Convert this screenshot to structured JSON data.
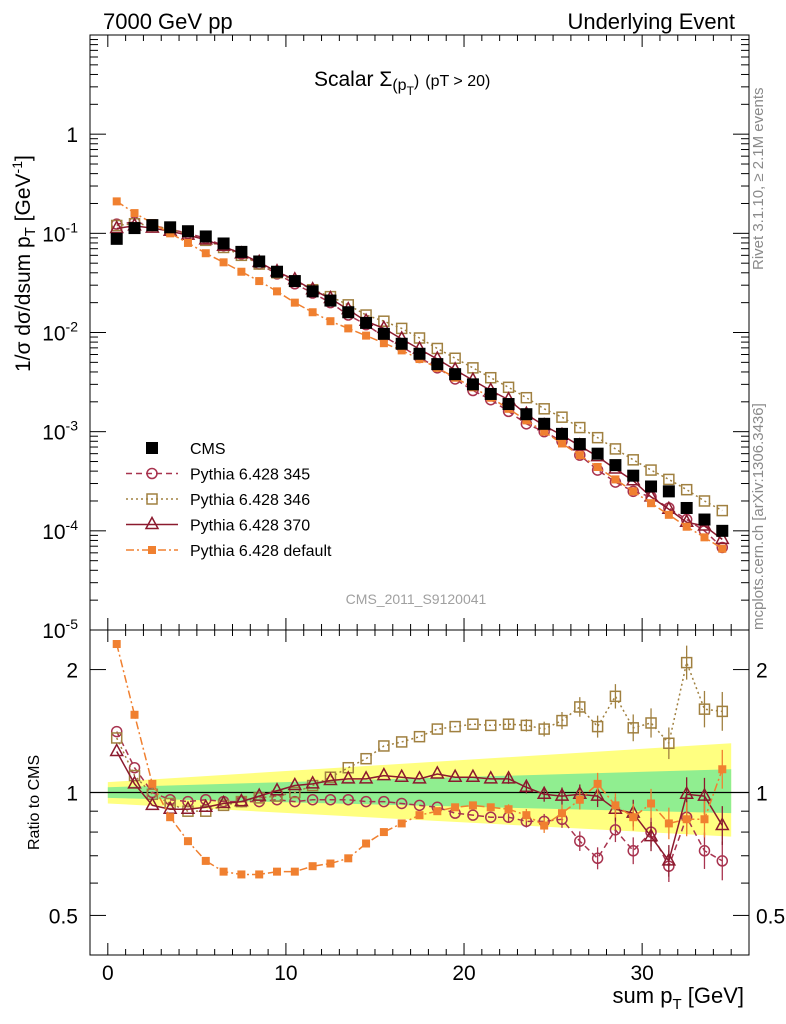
{
  "header": {
    "left": "7000 GeV pp",
    "right": "Underlying Event",
    "title_main": "Scalar Σ",
    "title_sub": "(p",
    "title_subT": "T",
    "title_close": ")",
    "title_cut": "(pT > 20)",
    "analysis_id": "CMS_2011_S9120041",
    "side_rivet": "Rivet 3.1.10, ≥ 2.1M events",
    "side_site": "mcplots.cern.ch [arXiv:1306.3436]"
  },
  "axes": {
    "top_ylabel": "1/σ dσ/dsum p",
    "top_ylabel_sub": "T",
    "top_ylabel_unit": " [GeV",
    "top_ylabel_unit_sup": "-1",
    "top_ylabel_close": "]",
    "bottom_ylabel": "Ratio to CMS",
    "xlabel": "sum p",
    "xlabel_sub": "T",
    "xlabel_unit": " [GeV]"
  },
  "chart_data": [
    {
      "type": "scatter",
      "panel": "main",
      "yscale": "log",
      "xlim": [
        -1,
        36
      ],
      "ylim": [
        1e-05,
        10
      ],
      "xticks": [
        0,
        10,
        20,
        30
      ],
      "yticks": [
        {
          "value": 1,
          "label": "1"
        },
        {
          "value": 0.1,
          "label": "10",
          "exp": "-1"
        },
        {
          "value": 0.01,
          "label": "10",
          "exp": "-2"
        },
        {
          "value": 0.001,
          "label": "10",
          "exp": "-3"
        },
        {
          "value": 0.0001,
          "label": "10",
          "exp": "-4"
        },
        {
          "value": 1e-05,
          "label": "10",
          "exp": "-5"
        }
      ],
      "x": [
        0.5,
        1.5,
        2.5,
        3.5,
        4.5,
        5.5,
        6.5,
        7.5,
        8.5,
        9.5,
        10.5,
        11.5,
        12.5,
        13.5,
        14.5,
        15.5,
        16.5,
        17.5,
        18.5,
        19.5,
        20.5,
        21.5,
        22.5,
        23.5,
        24.5,
        25.5,
        26.5,
        27.5,
        28.5,
        29.5,
        30.5,
        31.5,
        32.5,
        33.5,
        34.5
      ],
      "series": [
        {
          "name": "CMS",
          "color": "#000000",
          "marker": "square-filled",
          "line": "none",
          "values": [
            0.088,
            0.113,
            0.121,
            0.115,
            0.105,
            0.093,
            0.079,
            0.065,
            0.052,
            0.041,
            0.033,
            0.026,
            0.021,
            0.016,
            0.0125,
            0.0097,
            0.0077,
            0.0061,
            0.0048,
            0.0038,
            0.003,
            0.0024,
            0.0019,
            0.0015,
            0.0012,
            0.00095,
            0.00075,
            0.0006,
            0.00046,
            0.00036,
            0.00028,
            0.00025,
            0.00017,
            0.00013,
            0.0001
          ]
        },
        {
          "name": "Pythia 6.428 345",
          "color": "#a8334f",
          "marker": "circle-open",
          "line": "dashed",
          "values": [
            0.124,
            0.13,
            0.12,
            0.11,
            0.1,
            0.089,
            0.075,
            0.062,
            0.049,
            0.039,
            0.031,
            0.025,
            0.02,
            0.015,
            0.012,
            0.0091,
            0.0072,
            0.0056,
            0.0044,
            0.0034,
            0.0026,
            0.0021,
            0.0016,
            0.0012,
            0.001,
            0.0008,
            0.00058,
            0.00041,
            0.00031,
            0.00025,
            0.00022,
            0.00017,
            0.00013,
            0.0001,
            6.8e-05
          ]
        },
        {
          "name": "Pythia 6.428 346",
          "color": "#a08040",
          "marker": "square-open",
          "line": "dotted",
          "values": [
            0.12,
            0.125,
            0.12,
            0.11,
            0.098,
            0.085,
            0.072,
            0.06,
            0.049,
            0.04,
            0.033,
            0.027,
            0.023,
            0.019,
            0.015,
            0.013,
            0.011,
            0.0088,
            0.0069,
            0.0055,
            0.0044,
            0.0035,
            0.0028,
            0.0022,
            0.0017,
            0.0014,
            0.0011,
            0.00087,
            0.00067,
            0.00052,
            0.00041,
            0.00033,
            0.00026,
            0.0002,
            0.00016
          ]
        },
        {
          "name": "Pythia 6.428 370",
          "color": "#8b1a2e",
          "marker": "triangle-open",
          "line": "solid",
          "values": [
            0.112,
            0.119,
            0.113,
            0.105,
            0.096,
            0.086,
            0.074,
            0.062,
            0.051,
            0.041,
            0.034,
            0.027,
            0.022,
            0.017,
            0.013,
            0.011,
            0.0086,
            0.0068,
            0.0054,
            0.0042,
            0.0033,
            0.0026,
            0.0021,
            0.0015,
            0.00115,
            0.00092,
            0.00072,
            0.00056,
            0.00042,
            0.00032,
            0.00022,
            0.000165,
            0.000122,
            0.000112,
            8.2e-05
          ]
        },
        {
          "name": "Pythia 6.428 default",
          "color": "#f08030",
          "marker": "square-filled",
          "line": "dashdot",
          "values": [
            0.21,
            0.16,
            0.127,
            0.1,
            0.08,
            0.063,
            0.051,
            0.041,
            0.033,
            0.026,
            0.02,
            0.016,
            0.013,
            0.011,
            0.0093,
            0.0078,
            0.0066,
            0.0054,
            0.0044,
            0.0035,
            0.0028,
            0.0022,
            0.0017,
            0.0013,
            0.001,
            0.00076,
            0.00058,
            0.00044,
            0.00033,
            0.00025,
            0.00019,
            0.000145,
            0.00011,
            8.6e-05,
            6.6e-05
          ]
        }
      ],
      "legend_position": "lower-left"
    },
    {
      "type": "scatter",
      "panel": "ratio",
      "yscale": "log",
      "xlim": [
        -1,
        36
      ],
      "ylim": [
        0.4,
        2.5
      ],
      "xticks": [
        0,
        10,
        20,
        30
      ],
      "yticks": [
        {
          "value": 0.5,
          "label": "0.5"
        },
        {
          "value": 1,
          "label": "1"
        },
        {
          "value": 2,
          "label": "2"
        }
      ],
      "band_1sigma": {
        "color": "#90ee90",
        "low_start": 0.97,
        "high_start": 1.03,
        "low_end": 0.89,
        "high_end": 1.14
      },
      "band_2sigma": {
        "color": "#ffff80",
        "low_start": 0.94,
        "high_start": 1.06,
        "low_end": 0.78,
        "high_end": 1.32
      },
      "series": [
        {
          "name": "Pythia 6.428 345",
          "values": [
            1.41,
            1.15,
            1.0,
            0.96,
            0.95,
            0.96,
            0.95,
            0.95,
            0.95,
            0.96,
            0.95,
            0.96,
            0.96,
            0.96,
            0.95,
            0.95,
            0.94,
            0.93,
            0.92,
            0.89,
            0.88,
            0.87,
            0.87,
            0.85,
            0.85,
            0.86,
            0.76,
            0.69,
            0.81,
            0.72,
            0.8,
            0.66,
            0.87,
            0.72,
            0.68
          ]
        },
        {
          "name": "Pythia 6.428 346",
          "values": [
            1.36,
            1.1,
            0.99,
            0.94,
            0.9,
            0.9,
            0.93,
            0.95,
            0.97,
            0.98,
            1.0,
            1.04,
            1.09,
            1.15,
            1.21,
            1.3,
            1.33,
            1.37,
            1.43,
            1.45,
            1.47,
            1.46,
            1.47,
            1.46,
            1.43,
            1.5,
            1.62,
            1.45,
            1.72,
            1.44,
            1.48,
            1.32,
            2.08,
            1.6,
            1.58
          ]
        },
        {
          "name": "Pythia 6.428 370",
          "values": [
            1.26,
            1.05,
            0.93,
            0.91,
            0.91,
            0.92,
            0.94,
            0.95,
            0.98,
            1.01,
            1.04,
            1.05,
            1.07,
            1.08,
            1.08,
            1.1,
            1.09,
            1.08,
            1.11,
            1.09,
            1.09,
            1.08,
            1.08,
            1.03,
            0.99,
            0.98,
            0.99,
            0.98,
            0.91,
            0.89,
            0.78,
            0.68,
            0.99,
            0.98,
            0.83
          ]
        },
        {
          "name": "Pythia 6.428 default",
          "values": [
            2.31,
            1.55,
            1.05,
            0.87,
            0.76,
            0.68,
            0.64,
            0.63,
            0.63,
            0.64,
            0.64,
            0.66,
            0.67,
            0.69,
            0.75,
            0.8,
            0.84,
            0.88,
            0.9,
            0.92,
            0.93,
            0.92,
            0.91,
            0.88,
            0.83,
            0.89,
            0.96,
            1.05,
            0.93,
            0.87,
            0.94,
            0.84,
            0.86,
            0.86,
            1.14
          ]
        }
      ]
    }
  ]
}
